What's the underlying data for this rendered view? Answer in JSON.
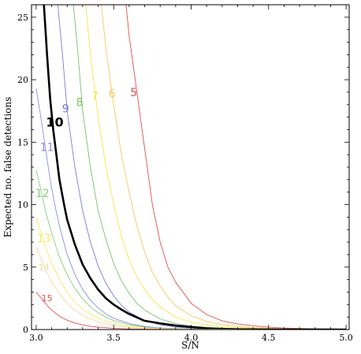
{
  "chart_data": {
    "type": "line",
    "title": "",
    "xlabel": "S/N",
    "ylabel": "Expected no. false detections",
    "xlim": [
      2.97,
      5.02
    ],
    "ylim": [
      0,
      26
    ],
    "xticks": [
      3.0,
      3.5,
      4.0,
      4.5,
      5.0
    ],
    "xtick_labels": [
      "3.0",
      "3.5",
      "4.0",
      "4.5",
      "5.0"
    ],
    "yticks": [
      0,
      5,
      10,
      15,
      20,
      25
    ],
    "ytick_labels": [
      "0",
      "5",
      "10",
      "15",
      "20",
      "25"
    ],
    "grid": false,
    "legend": "none",
    "series": [
      {
        "name": "5",
        "color": "#e05050",
        "label_pos": [
          3.63,
          19.0
        ],
        "label_size": 14,
        "points": [
          [
            3.58,
            26
          ],
          [
            3.6,
            23.5
          ],
          [
            3.65,
            19
          ],
          [
            3.7,
            14.5
          ],
          [
            3.75,
            10
          ],
          [
            3.8,
            7
          ],
          [
            3.85,
            5
          ],
          [
            3.9,
            3.8
          ],
          [
            4.0,
            2.1
          ],
          [
            4.1,
            1.2
          ],
          [
            4.2,
            0.7
          ],
          [
            4.3,
            0.45
          ],
          [
            4.4,
            0.3
          ],
          [
            4.5,
            0.18
          ],
          [
            4.6,
            0.12
          ],
          [
            4.7,
            0.08
          ],
          [
            4.8,
            0.05
          ],
          [
            4.9,
            0.03
          ],
          [
            5.0,
            0.02
          ]
        ]
      },
      {
        "name": "6",
        "color": "#f5c860",
        "label_pos": [
          3.49,
          18.9
        ],
        "label_size": 14,
        "points": [
          [
            3.42,
            26
          ],
          [
            3.45,
            22.5
          ],
          [
            3.5,
            18
          ],
          [
            3.55,
            14
          ],
          [
            3.6,
            11
          ],
          [
            3.65,
            8.3
          ],
          [
            3.7,
            6.2
          ],
          [
            3.75,
            4.6
          ],
          [
            3.8,
            3.5
          ],
          [
            3.85,
            2.6
          ],
          [
            3.9,
            1.9
          ],
          [
            4.0,
            1.1
          ],
          [
            4.1,
            0.65
          ],
          [
            4.2,
            0.4
          ],
          [
            4.3,
            0.25
          ],
          [
            4.4,
            0.16
          ],
          [
            4.5,
            0.1
          ],
          [
            4.7,
            0.05
          ],
          [
            5.0,
            0.02
          ]
        ]
      },
      {
        "name": "7",
        "color": "#f2e84a",
        "label_pos": [
          3.38,
          18.7
        ],
        "label_size": 14,
        "points": [
          [
            3.32,
            26
          ],
          [
            3.35,
            22
          ],
          [
            3.4,
            17
          ],
          [
            3.45,
            13
          ],
          [
            3.5,
            10
          ],
          [
            3.55,
            7.5
          ],
          [
            3.6,
            5.6
          ],
          [
            3.65,
            4.2
          ],
          [
            3.7,
            3.2
          ],
          [
            3.75,
            2.4
          ],
          [
            3.8,
            1.8
          ],
          [
            3.9,
            1.0
          ],
          [
            4.0,
            0.6
          ],
          [
            4.1,
            0.36
          ],
          [
            4.2,
            0.22
          ],
          [
            4.3,
            0.14
          ],
          [
            4.5,
            0.06
          ],
          [
            4.7,
            0.03
          ],
          [
            5.0,
            0.01
          ]
        ]
      },
      {
        "name": "8",
        "color": "#7cc06a",
        "label_pos": [
          3.28,
          18.2
        ],
        "label_size": 14,
        "points": [
          [
            3.24,
            26
          ],
          [
            3.27,
            22
          ],
          [
            3.3,
            17.5
          ],
          [
            3.35,
            13
          ],
          [
            3.4,
            9.5
          ],
          [
            3.45,
            7.2
          ],
          [
            3.5,
            5.3
          ],
          [
            3.55,
            3.9
          ],
          [
            3.6,
            2.9
          ],
          [
            3.65,
            2.1
          ],
          [
            3.7,
            1.55
          ],
          [
            3.8,
            0.85
          ],
          [
            3.9,
            0.48
          ],
          [
            4.0,
            0.28
          ],
          [
            4.1,
            0.17
          ],
          [
            4.2,
            0.1
          ],
          [
            4.4,
            0.04
          ],
          [
            4.7,
            0.01
          ],
          [
            5.0,
            0.005
          ]
        ]
      },
      {
        "name": "9",
        "color": "#7a7ae0",
        "label_pos": [
          3.19,
          17.7
        ],
        "label_size": 14,
        "points": [
          [
            3.14,
            26
          ],
          [
            3.17,
            22
          ],
          [
            3.2,
            17.5
          ],
          [
            3.25,
            13
          ],
          [
            3.3,
            9.5
          ],
          [
            3.35,
            7
          ],
          [
            3.4,
            5.1
          ],
          [
            3.45,
            3.7
          ],
          [
            3.5,
            2.7
          ],
          [
            3.55,
            1.95
          ],
          [
            3.6,
            1.4
          ],
          [
            3.7,
            0.72
          ],
          [
            3.8,
            0.38
          ],
          [
            3.9,
            0.2
          ],
          [
            4.0,
            0.11
          ],
          [
            4.1,
            0.06
          ],
          [
            4.3,
            0.02
          ],
          [
            4.6,
            0.005
          ],
          [
            5.0,
            0.002
          ]
        ]
      },
      {
        "name": "10",
        "color": "#000000",
        "label_pos": [
          3.12,
          16.6
        ],
        "label_size": 16,
        "bold": true,
        "points": [
          [
            3.05,
            26
          ],
          [
            3.07,
            22
          ],
          [
            3.09,
            18.5
          ],
          [
            3.11,
            16
          ],
          [
            3.13,
            14
          ],
          [
            3.15,
            12
          ],
          [
            3.18,
            10
          ],
          [
            3.2,
            8.8
          ],
          [
            3.25,
            6.8
          ],
          [
            3.3,
            5.2
          ],
          [
            3.35,
            4.1
          ],
          [
            3.4,
            3.2
          ],
          [
            3.45,
            2.5
          ],
          [
            3.5,
            2.0
          ],
          [
            3.55,
            1.6
          ],
          [
            3.6,
            1.25
          ],
          [
            3.7,
            0.7
          ],
          [
            3.8,
            0.5
          ],
          [
            3.9,
            0.32
          ],
          [
            4.0,
            0.2
          ],
          [
            4.1,
            0.1
          ],
          [
            4.2,
            0.05
          ],
          [
            4.3,
            0.02
          ],
          [
            4.5,
            0.005
          ],
          [
            5.0,
            0.001
          ]
        ]
      },
      {
        "name": "11",
        "color": "#8c8ce6",
        "label_pos": [
          3.07,
          14.6
        ],
        "label_size": 14,
        "points": [
          [
            3.0,
            19.3
          ],
          [
            3.03,
            17
          ],
          [
            3.06,
            14.5
          ],
          [
            3.09,
            12
          ],
          [
            3.12,
            10
          ],
          [
            3.15,
            8.3
          ],
          [
            3.2,
            6
          ],
          [
            3.25,
            4.4
          ],
          [
            3.3,
            3.2
          ],
          [
            3.35,
            2.35
          ],
          [
            3.4,
            1.72
          ],
          [
            3.45,
            1.25
          ],
          [
            3.5,
            0.9
          ],
          [
            3.6,
            0.48
          ],
          [
            3.7,
            0.25
          ],
          [
            3.8,
            0.13
          ],
          [
            4.0,
            0.04
          ],
          [
            4.3,
            0.008
          ],
          [
            5.0,
            0.001
          ]
        ]
      },
      {
        "name": "12",
        "color": "#8acb7a",
        "label_pos": [
          3.04,
          10.9
        ],
        "label_size": 14,
        "points": [
          [
            3.0,
            12.8
          ],
          [
            3.03,
            11.2
          ],
          [
            3.06,
            9.5
          ],
          [
            3.1,
            7.7
          ],
          [
            3.15,
            5.8
          ],
          [
            3.2,
            4.4
          ],
          [
            3.25,
            3.3
          ],
          [
            3.3,
            2.45
          ],
          [
            3.35,
            1.82
          ],
          [
            3.4,
            1.35
          ],
          [
            3.45,
            1.0
          ],
          [
            3.5,
            0.73
          ],
          [
            3.6,
            0.38
          ],
          [
            3.7,
            0.2
          ],
          [
            3.8,
            0.1
          ],
          [
            4.0,
            0.03
          ],
          [
            4.3,
            0.005
          ],
          [
            5.0,
            0.001
          ]
        ]
      },
      {
        "name": "13",
        "color": "#f4ea6a",
        "label_pos": [
          3.05,
          7.3
        ],
        "label_size": 14,
        "points": [
          [
            3.0,
            9.0
          ],
          [
            3.03,
            7.8
          ],
          [
            3.06,
            6.6
          ],
          [
            3.1,
            5.3
          ],
          [
            3.15,
            4.0
          ],
          [
            3.2,
            3.0
          ],
          [
            3.25,
            2.2
          ],
          [
            3.3,
            1.65
          ],
          [
            3.35,
            1.22
          ],
          [
            3.4,
            0.9
          ],
          [
            3.45,
            0.66
          ],
          [
            3.5,
            0.48
          ],
          [
            3.6,
            0.25
          ],
          [
            3.7,
            0.13
          ],
          [
            3.8,
            0.07
          ],
          [
            4.0,
            0.02
          ],
          [
            4.5,
            0.002
          ],
          [
            5.0,
            0.0005
          ]
        ]
      },
      {
        "name": "14",
        "color": "#f3d9a0",
        "label_pos": [
          3.05,
          5.0
        ],
        "label_size": 11,
        "points": [
          [
            3.0,
            6.6
          ],
          [
            3.03,
            5.7
          ],
          [
            3.06,
            4.8
          ],
          [
            3.1,
            3.8
          ],
          [
            3.15,
            2.85
          ],
          [
            3.2,
            2.1
          ],
          [
            3.25,
            1.55
          ],
          [
            3.3,
            1.15
          ],
          [
            3.35,
            0.85
          ],
          [
            3.4,
            0.62
          ],
          [
            3.45,
            0.45
          ],
          [
            3.5,
            0.33
          ],
          [
            3.6,
            0.17
          ],
          [
            3.7,
            0.09
          ],
          [
            3.8,
            0.05
          ],
          [
            4.0,
            0.015
          ],
          [
            5.0,
            0.0005
          ]
        ]
      },
      {
        "name": "15",
        "color": "#e05050",
        "label_pos": [
          3.07,
          2.5
        ],
        "label_size": 11,
        "points": [
          [
            3.0,
            3.0
          ],
          [
            3.04,
            2.4
          ],
          [
            3.08,
            1.8
          ],
          [
            3.12,
            1.35
          ],
          [
            3.16,
            1.0
          ],
          [
            3.2,
            0.75
          ],
          [
            3.25,
            0.52
          ],
          [
            3.3,
            0.37
          ],
          [
            3.35,
            0.26
          ],
          [
            3.4,
            0.19
          ],
          [
            3.5,
            0.1
          ],
          [
            3.6,
            0.05
          ],
          [
            3.7,
            0.025
          ],
          [
            3.8,
            0.012
          ],
          [
            4.0,
            0.003
          ],
          [
            5.0,
            0.0001
          ]
        ]
      }
    ]
  }
}
